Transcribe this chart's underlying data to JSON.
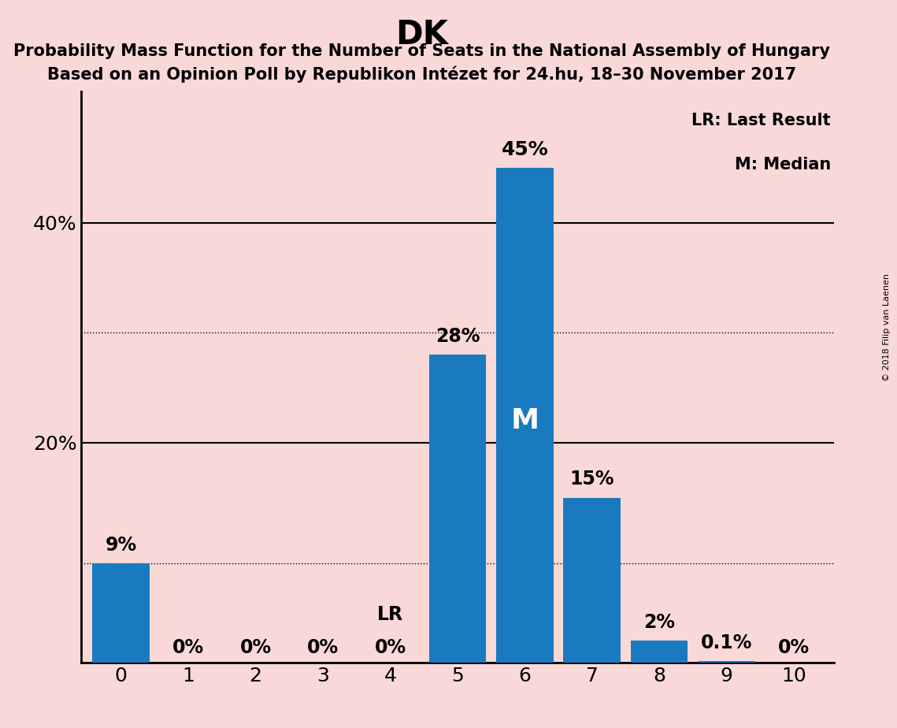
{
  "title": "DK",
  "subtitle1": "Probability Mass Function for the Number of Seats in the National Assembly of Hungary",
  "subtitle2": "Based on an Opinion Poll by Republikon Intézet for 24.hu, 18–30 November 2017",
  "copyright": "© 2018 Filip van Laenen",
  "categories": [
    0,
    1,
    2,
    3,
    4,
    5,
    6,
    7,
    8,
    9,
    10
  ],
  "values": [
    9,
    0,
    0,
    0,
    0,
    28,
    45,
    15,
    2,
    0.1,
    0
  ],
  "bar_color": "#1a7abf",
  "background_color": "#f9d8d8",
  "bar_labels": [
    "9%",
    "0%",
    "0%",
    "0%",
    "0%",
    "28%",
    "45%",
    "15%",
    "2%",
    "0.1%",
    "0%"
  ],
  "lr_bar": 4,
  "median_bar": 6,
  "legend_lr": "LR: Last Result",
  "legend_m": "M: Median",
  "yticks": [
    20,
    40
  ],
  "ylim": [
    0,
    52
  ],
  "dotted_lines": [
    9,
    30
  ],
  "solid_lines": [
    20,
    40
  ]
}
